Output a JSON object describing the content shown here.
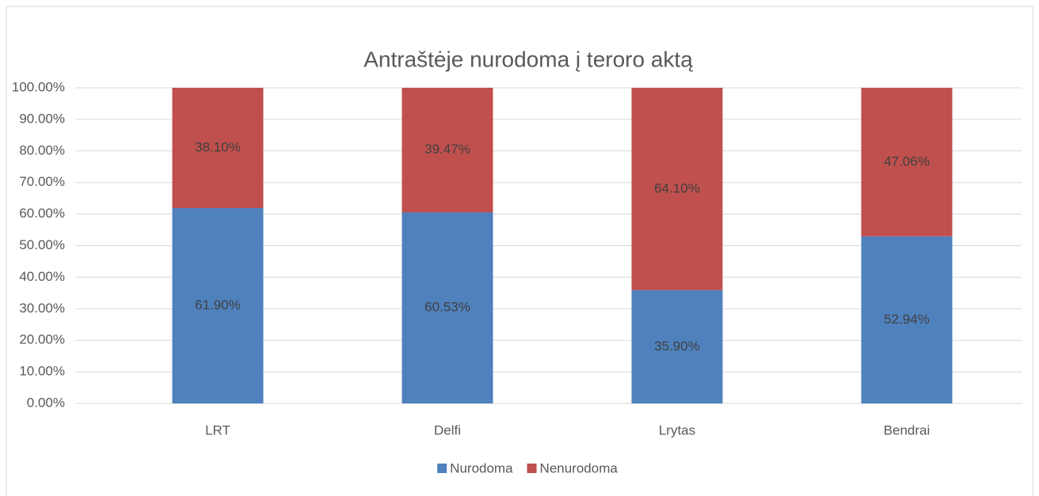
{
  "chart_data": {
    "type": "stacked_bar",
    "title": "Antraštėje nurodoma į teroro aktą",
    "categories": [
      "LRT",
      "Delfi",
      "Lrytas",
      "Bendrai"
    ],
    "series": [
      {
        "name": "Nurodoma",
        "color": "#4f81bd",
        "values": [
          61.9,
          60.53,
          35.9,
          52.94
        ],
        "value_labels": [
          "61.90%",
          "60.53%",
          "35.90%",
          "52.94%"
        ]
      },
      {
        "name": "Nenurodoma",
        "color": "#c0504d",
        "values": [
          38.1,
          39.47,
          64.1,
          47.06
        ],
        "value_labels": [
          "38.10%",
          "39.47%",
          "64.10%",
          "47.06%"
        ]
      }
    ],
    "ylim": [
      0,
      100
    ],
    "yticks": [
      {
        "value": 0,
        "label": "0.00%"
      },
      {
        "value": 10,
        "label": "10.00%"
      },
      {
        "value": 20,
        "label": "20.00%"
      },
      {
        "value": 30,
        "label": "30.00%"
      },
      {
        "value": 40,
        "label": "40.00%"
      },
      {
        "value": 50,
        "label": "50.00%"
      },
      {
        "value": 60,
        "label": "60.00%"
      },
      {
        "value": 70,
        "label": "70.00%"
      },
      {
        "value": 80,
        "label": "80.00%"
      },
      {
        "value": 90,
        "label": "90.00%"
      },
      {
        "value": 100,
        "label": "100.00%"
      }
    ],
    "grid": true,
    "legend": "bottom"
  }
}
